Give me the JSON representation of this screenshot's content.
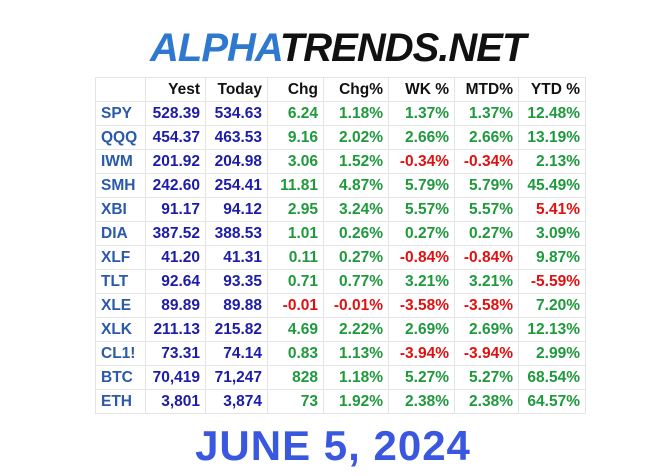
{
  "header": {
    "logo": {
      "brand": "ALPHA",
      "rest": "TRENDS.NET"
    }
  },
  "table": {
    "columns": [
      "Yest",
      "Today",
      "Chg",
      "Chg%",
      "WK %",
      "MTD%",
      "YTD %"
    ],
    "rows": [
      {
        "cells": [
          "SPY",
          "528.39",
          "534.63",
          "6.24",
          "1.18%",
          "1.37%",
          "1.37%",
          "12.48%"
        ],
        "red": []
      },
      {
        "cells": [
          "QQQ",
          "454.37",
          "463.53",
          "9.16",
          "2.02%",
          "2.66%",
          "2.66%",
          "13.19%"
        ],
        "red": []
      },
      {
        "cells": [
          "IWM",
          "201.92",
          "204.98",
          "3.06",
          "1.52%",
          "-0.34%",
          "-0.34%",
          "2.13%"
        ],
        "red": [
          5,
          6
        ]
      },
      {
        "cells": [
          "SMH",
          "242.60",
          "254.41",
          "11.81",
          "4.87%",
          "5.79%",
          "5.79%",
          "45.49%"
        ],
        "red": []
      },
      {
        "cells": [
          "XBI",
          "91.17",
          "94.12",
          "2.95",
          "3.24%",
          "5.57%",
          "5.57%",
          "5.41%"
        ],
        "red": [
          7
        ]
      },
      {
        "cells": [
          "DIA",
          "387.52",
          "388.53",
          "1.01",
          "0.26%",
          "0.27%",
          "0.27%",
          "3.09%"
        ],
        "red": []
      },
      {
        "cells": [
          "XLF",
          "41.20",
          "41.31",
          "0.11",
          "0.27%",
          "-0.84%",
          "-0.84%",
          "9.87%"
        ],
        "red": [
          5,
          6
        ]
      },
      {
        "cells": [
          "TLT",
          "92.64",
          "93.35",
          "0.71",
          "0.77%",
          "3.21%",
          "3.21%",
          "-5.59%"
        ],
        "red": [
          7
        ]
      },
      {
        "cells": [
          "XLE",
          "89.89",
          "89.88",
          "-0.01",
          "-0.01%",
          "-3.58%",
          "-3.58%",
          "7.20%"
        ],
        "red": [
          3,
          4,
          5,
          6
        ]
      },
      {
        "cells": [
          "XLK",
          "211.13",
          "215.82",
          "4.69",
          "2.22%",
          "2.69%",
          "2.69%",
          "12.13%"
        ],
        "red": []
      },
      {
        "cells": [
          "CL1!",
          "73.31",
          "74.14",
          "0.83",
          "1.13%",
          "-3.94%",
          "-3.94%",
          "2.99%"
        ],
        "red": [
          5,
          6
        ]
      },
      {
        "cells": [
          "BTC",
          "70,419",
          "71,247",
          "828",
          "1.18%",
          "5.27%",
          "5.27%",
          "68.54%"
        ],
        "red": []
      },
      {
        "cells": [
          "ETH",
          "3,801",
          "3,874",
          "73",
          "1.92%",
          "2.38%",
          "2.38%",
          "64.57%"
        ],
        "red": []
      }
    ]
  },
  "footer": {
    "date": "JUNE 5, 2024"
  }
}
